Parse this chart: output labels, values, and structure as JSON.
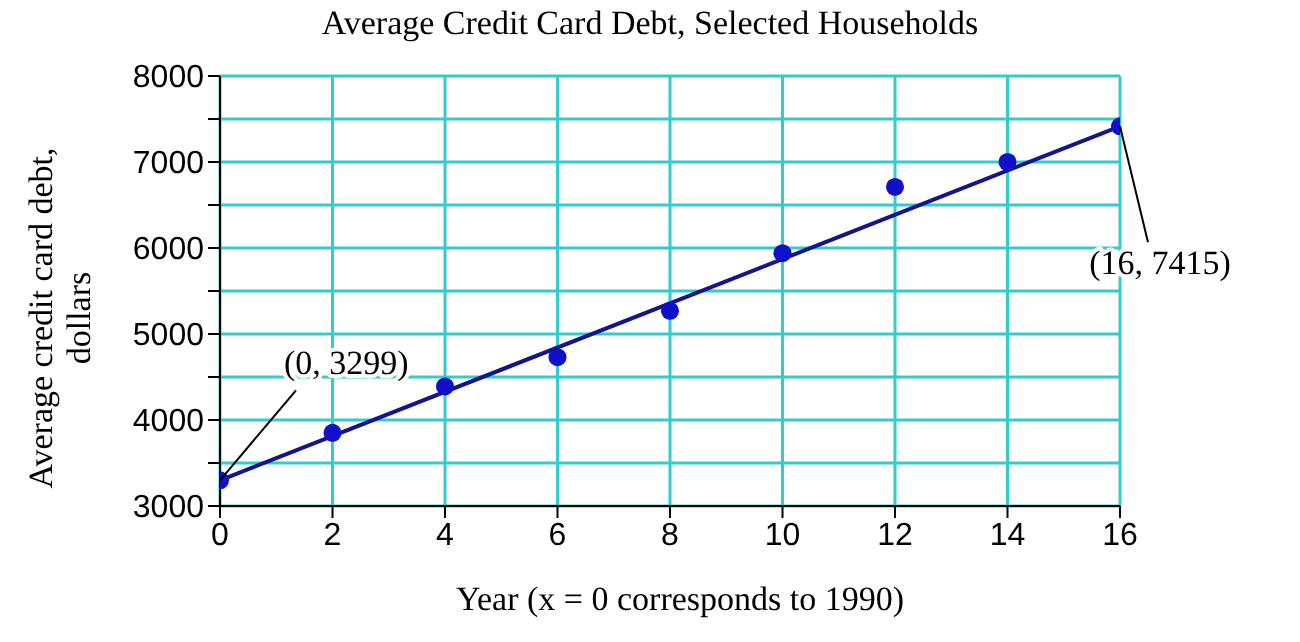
{
  "chart_data": {
    "type": "scatter",
    "title": "Average Credit Card Debt, Selected Households",
    "xlabel": "Year (x = 0 corresponds to 1990)",
    "ylabel": "Average credit card debt, dollars",
    "x": [
      0,
      2,
      4,
      6,
      8,
      10,
      12,
      14,
      16
    ],
    "series": [
      {
        "color": "#1010c8",
        "marker": "circle",
        "values": [
          3299,
          3850,
          4390,
          4730,
          5270,
          5940,
          6710,
          7000,
          7415
        ]
      },
      {
        "type": "line",
        "color": "#14148c",
        "x": [
          0,
          16
        ],
        "values": [
          3299,
          7415
        ]
      }
    ],
    "xlim": [
      0,
      16
    ],
    "xticks": [
      0,
      2,
      4,
      6,
      8,
      10,
      12,
      14,
      16
    ],
    "ylim": [
      3000,
      8000
    ],
    "yticks": [
      3000,
      {
        "value": 3500,
        "label": null
      },
      4000,
      {
        "value": 4500,
        "label": null
      },
      5000,
      {
        "value": 5500,
        "label": null
      },
      6000,
      {
        "value": 6500,
        "label": null
      },
      7000,
      {
        "value": 7500,
        "label": null
      },
      8000
    ],
    "grid": true,
    "line_style": "solid",
    "annotations": [
      {
        "text": "(0, 3299)",
        "x": 0,
        "y": 3299
      },
      {
        "text": "(16, 7415)",
        "x": 16,
        "y": 7415
      }
    ]
  }
}
